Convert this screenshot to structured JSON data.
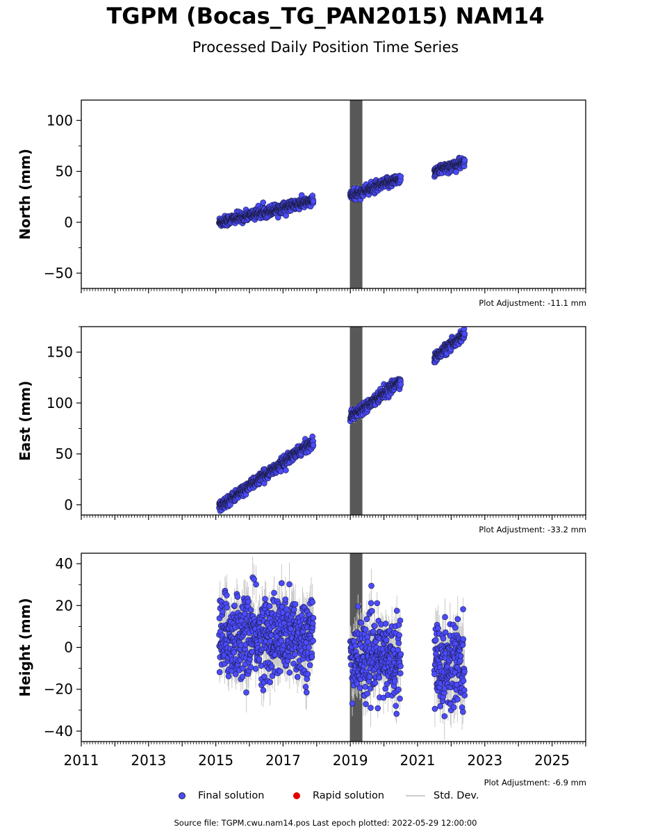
{
  "title": "TGPM (Bocas_TG_PAN2015) NAM14",
  "subtitle": "Processed Daily Position Time Series",
  "legend": {
    "final": "Final solution",
    "rapid": "Rapid solution",
    "stddev": "Std. Dev."
  },
  "source_line": "Source file: TGPM.cwu.nam14.pos  Last epoch plotted: 2022-05-29 12:00:00",
  "colors": {
    "final": "#4b4bff",
    "rapid": "#e00000",
    "stddev": "#c8c8c8",
    "equipment_change_band": "#5a5a5a"
  },
  "chart_data": [
    {
      "type": "scatter",
      "panel": "north",
      "ylabel": "North (mm)",
      "ylim": [
        -65,
        120
      ],
      "yticks": [
        -50,
        0,
        50,
        100
      ],
      "xlim": [
        2011,
        2026
      ],
      "xticks": [
        2011,
        2013,
        2015,
        2017,
        2019,
        2021,
        2023,
        2025
      ],
      "plot_adjustment": "Plot Adjustment: -11.1 mm",
      "segments": [
        {
          "x": [
            2015.1,
            2017.9
          ],
          "y": [
            0,
            21
          ],
          "scatter": 2.5,
          "sigma": 3
        },
        {
          "x": [
            2019.0,
            2020.5
          ],
          "y": [
            26,
            43
          ],
          "scatter": 2.5,
          "sigma": 3
        },
        {
          "x": [
            2021.5,
            2022.4
          ],
          "y": [
            50,
            59
          ],
          "scatter": 2.5,
          "sigma": 3
        }
      ],
      "equipment_change_band": [
        2019.0,
        2019.35
      ]
    },
    {
      "type": "scatter",
      "panel": "east",
      "ylabel": "East (mm)",
      "ylim": [
        -10,
        175
      ],
      "yticks": [
        0,
        50,
        100,
        150
      ],
      "xlim": [
        2011,
        2026
      ],
      "xticks": [
        2011,
        2013,
        2015,
        2017,
        2019,
        2021,
        2023,
        2025
      ],
      "plot_adjustment": "Plot Adjustment: -33.2 mm",
      "segments": [
        {
          "x": [
            2015.1,
            2017.9
          ],
          "y": [
            -2,
            62
          ],
          "scatter": 2.5,
          "sigma": 3
        },
        {
          "x": [
            2019.0,
            2020.5
          ],
          "y": [
            86,
            122
          ],
          "scatter": 2.5,
          "sigma": 3
        },
        {
          "x": [
            2021.5,
            2022.4
          ],
          "y": [
            144,
            168
          ],
          "scatter": 2.5,
          "sigma": 3
        }
      ],
      "equipment_change_band": [
        2019.0,
        2019.35
      ]
    },
    {
      "type": "scatter",
      "panel": "height",
      "ylabel": "Height (mm)",
      "ylim": [
        -45,
        45
      ],
      "yticks": [
        -40,
        -20,
        0,
        20,
        40
      ],
      "xlim": [
        2011,
        2026
      ],
      "xticks": [
        2011,
        2013,
        2015,
        2017,
        2019,
        2021,
        2023,
        2025
      ],
      "plot_adjustment": "Plot Adjustment: -6.9 mm",
      "segments": [
        {
          "x": [
            2015.1,
            2017.9
          ],
          "y": [
            5,
            5
          ],
          "scatter": 10,
          "sigma": 8
        },
        {
          "x": [
            2019.0,
            2020.5
          ],
          "y": [
            -5,
            -5
          ],
          "scatter": 9,
          "sigma": 7
        },
        {
          "x": [
            2021.5,
            2022.4
          ],
          "y": [
            -8,
            -8
          ],
          "scatter": 11,
          "sigma": 8
        }
      ],
      "equipment_change_band": [
        2019.0,
        2019.35
      ]
    }
  ]
}
